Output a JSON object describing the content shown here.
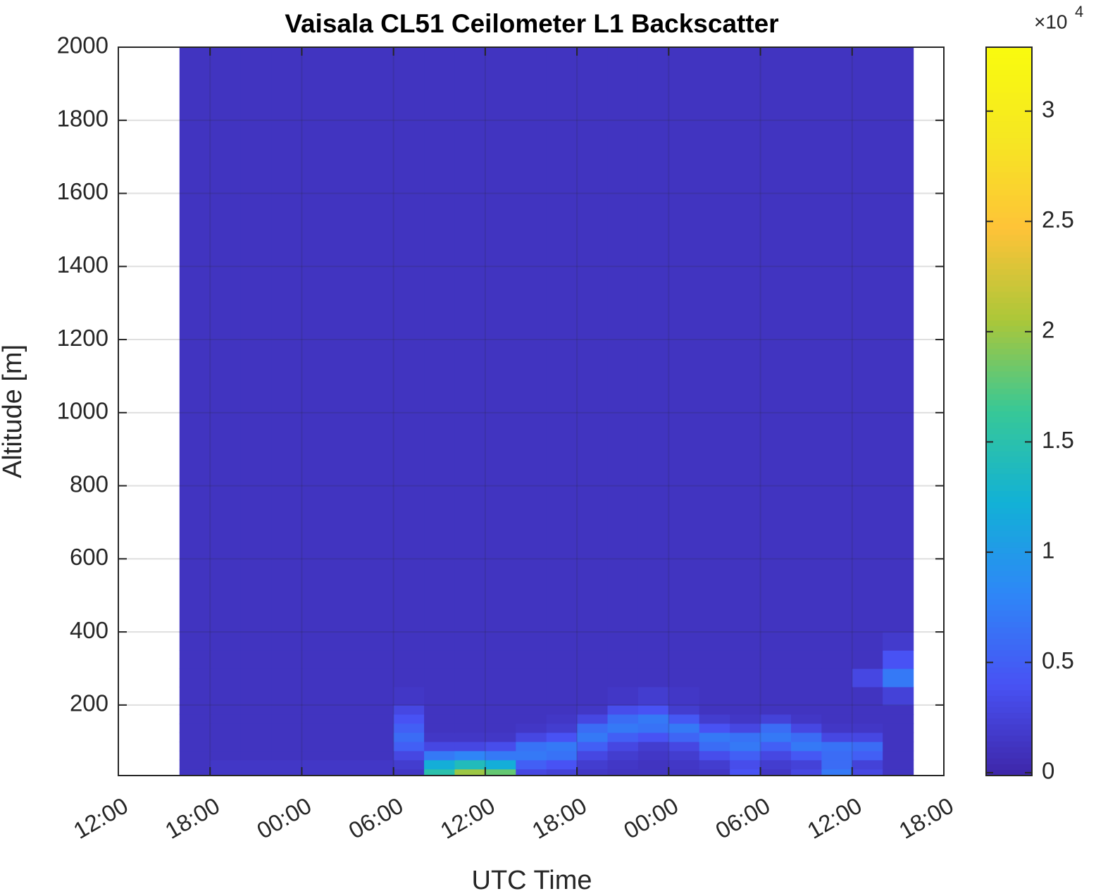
{
  "chart_data": {
    "type": "heatmap",
    "title": "Vaisala CL51 Ceilometer L1 Backscatter",
    "x_label": "UTC Time",
    "y_label": "Altitude [m]",
    "xlim": [
      0,
      54
    ],
    "xticks": [
      {
        "value": 0,
        "label": "12:00"
      },
      {
        "value": 6,
        "label": "18:00"
      },
      {
        "value": 12,
        "label": "00:00"
      },
      {
        "value": 18,
        "label": "06:00"
      },
      {
        "value": 24,
        "label": "12:00"
      },
      {
        "value": 30,
        "label": "18:00"
      },
      {
        "value": 36,
        "label": "00:00"
      },
      {
        "value": 42,
        "label": "06:00"
      },
      {
        "value": 48,
        "label": "12:00"
      },
      {
        "value": 54,
        "label": "18:00"
      }
    ],
    "ylim": [
      7,
      2000
    ],
    "yticks": [
      200,
      400,
      600,
      800,
      1000,
      1200,
      1400,
      1600,
      1800,
      2000
    ],
    "grid": true,
    "colormap": "parula",
    "clim": [
      -130,
      32900
    ],
    "cticks": [
      0,
      {
        "value": 5000,
        "label": "0.5"
      },
      {
        "value": 10000,
        "label": "1"
      },
      {
        "value": 15000,
        "label": "1.5"
      },
      {
        "value": 20000,
        "label": "2"
      },
      {
        "value": 25000,
        "label": "2.5"
      },
      {
        "value": 30000,
        "label": "3"
      }
    ],
    "colorbar_scale": {
      "base": "×10",
      "exponent": "4"
    },
    "x_edges": [
      4,
      6,
      8,
      10,
      12,
      14,
      16,
      18,
      20,
      22,
      24,
      26,
      28,
      30,
      32,
      34,
      36,
      38,
      40,
      42,
      44,
      46,
      48,
      50,
      52
    ],
    "y_edges": [
      7,
      25,
      50,
      75,
      100,
      125,
      150,
      175,
      200,
      250,
      300,
      350,
      400,
      2000
    ],
    "z": [
      [
        1200,
        1500,
        1500,
        1500,
        1500,
        1500,
        1500,
        1500,
        15000,
        20000,
        18000,
        3000,
        2500,
        1500,
        1200,
        1200,
        1200,
        1500,
        4000,
        1500,
        3000,
        7000,
        3000,
        1200
      ],
      [
        1200,
        1500,
        1500,
        1500,
        1500,
        1500,
        1500,
        2000,
        12000,
        14000,
        12000,
        5000,
        4000,
        2000,
        1500,
        1200,
        1500,
        2000,
        3500,
        2000,
        2500,
        6000,
        2500,
        1200
      ],
      [
        1200,
        1200,
        1200,
        1200,
        1200,
        1200,
        1200,
        3000,
        7000,
        8000,
        7000,
        7000,
        6500,
        3000,
        2000,
        1500,
        2000,
        3500,
        5000,
        3000,
        4500,
        6000,
        5000,
        1200
      ],
      [
        1200,
        1200,
        1200,
        1200,
        1200,
        1200,
        1200,
        5000,
        3000,
        3000,
        3500,
        6500,
        7000,
        5000,
        3000,
        2000,
        3000,
        6000,
        7000,
        5000,
        7000,
        6500,
        6000,
        1200
      ],
      [
        1200,
        1200,
        1200,
        1200,
        1200,
        1200,
        1200,
        6000,
        1500,
        1500,
        1500,
        3000,
        4000,
        7000,
        5000,
        4000,
        5500,
        7000,
        6500,
        7000,
        6000,
        3000,
        3000,
        1200
      ],
      [
        1200,
        1200,
        1200,
        1200,
        1200,
        1200,
        1200,
        5000,
        1200,
        1200,
        1200,
        1500,
        2000,
        6000,
        7000,
        6500,
        7000,
        4000,
        3000,
        6000,
        3000,
        1500,
        1500,
        1200
      ],
      [
        1200,
        1200,
        1200,
        1200,
        1200,
        1200,
        1200,
        4000,
        1200,
        1200,
        1200,
        1200,
        1500,
        3000,
        6000,
        7000,
        4500,
        2000,
        1500,
        2500,
        1500,
        1200,
        1200,
        1200
      ],
      [
        1200,
        1200,
        1200,
        1200,
        1200,
        1200,
        1200,
        3000,
        1200,
        1200,
        1200,
        1200,
        1200,
        1500,
        3500,
        4000,
        2000,
        1200,
        1200,
        1200,
        1200,
        1200,
        1200,
        1200
      ],
      [
        1200,
        1200,
        1200,
        1200,
        1200,
        1200,
        1200,
        1500,
        1200,
        1200,
        1200,
        1200,
        1200,
        1200,
        1500,
        2000,
        1500,
        1200,
        1200,
        1200,
        1200,
        1200,
        1200,
        2500
      ],
      [
        1200,
        1200,
        1200,
        1200,
        1200,
        1200,
        1200,
        1200,
        1200,
        1200,
        1200,
        1200,
        1200,
        1200,
        1200,
        1200,
        1200,
        1200,
        1200,
        1200,
        1200,
        1200,
        3000,
        7000
      ],
      [
        1200,
        1200,
        1200,
        1200,
        1200,
        1200,
        1200,
        1200,
        1200,
        1200,
        1200,
        1200,
        1200,
        1200,
        1200,
        1200,
        1200,
        1200,
        1200,
        1200,
        1200,
        1200,
        1200,
        4000
      ],
      [
        1200,
        1200,
        1200,
        1200,
        1200,
        1200,
        1200,
        1200,
        1200,
        1200,
        1200,
        1200,
        1200,
        1200,
        1200,
        1200,
        1200,
        1200,
        1200,
        1200,
        1200,
        1200,
        1200,
        1800
      ],
      [
        1200,
        1200,
        1200,
        1200,
        1200,
        1200,
        1200,
        1200,
        1200,
        1200,
        1200,
        1200,
        1200,
        1200,
        1200,
        1200,
        1200,
        1200,
        1200,
        1200,
        1200,
        1200,
        1200,
        1200
      ]
    ]
  }
}
